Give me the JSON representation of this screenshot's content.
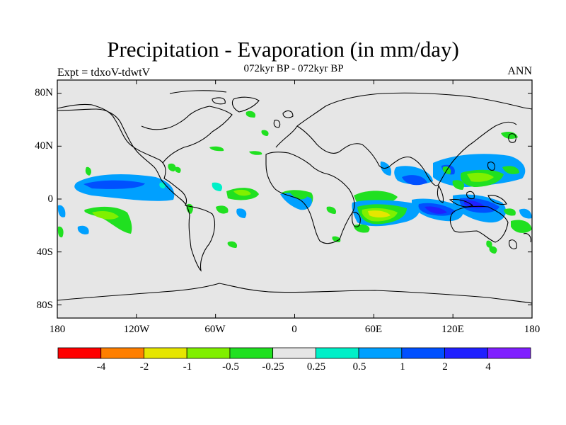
{
  "title": "Precipitation - Evaporation (in mm/day)",
  "subtitle_left": "Expt = tdxoV-tdwtV",
  "subtitle_center": "072kyr BP - 072kyr BP",
  "subtitle_right": "ANN",
  "lat_ticks": [
    {
      "label": "80N",
      "lat": 80
    },
    {
      "label": "40N",
      "lat": 40
    },
    {
      "label": "0",
      "lat": 0
    },
    {
      "label": "40S",
      "lat": -40
    },
    {
      "label": "80S",
      "lat": -80
    }
  ],
  "lon_ticks": [
    {
      "label": "180",
      "lon": -180
    },
    {
      "label": "120W",
      "lon": -120
    },
    {
      "label": "60W",
      "lon": -60
    },
    {
      "label": "0",
      "lon": 0
    },
    {
      "label": "60E",
      "lon": 60
    },
    {
      "label": "120E",
      "lon": 120
    },
    {
      "label": "180",
      "lon": 180
    }
  ],
  "colorbar": {
    "colors": [
      "#ff0000",
      "#ff7f00",
      "#e6e600",
      "#80f000",
      "#20e020",
      "#e6e6e6",
      "#00f0c8",
      "#00a0ff",
      "#0050ff",
      "#2020ff",
      "#8020ff"
    ],
    "labels": [
      "-4",
      "-2",
      "-1",
      "-0.5",
      "-0.25",
      "0.25",
      "0.5",
      "1",
      "2",
      "4"
    ]
  },
  "colors": {
    "background": "#e6e6e6",
    "coast": "#000000"
  }
}
